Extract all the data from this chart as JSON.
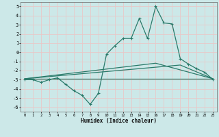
{
  "xlabel": "Humidex (Indice chaleur)",
  "bg_color": "#cce8e8",
  "plot_bg_color": "#cce8e8",
  "grid_color": "#e8c8c8",
  "line_color": "#2a7a6a",
  "xlim": [
    -0.5,
    23.5
  ],
  "ylim": [
    -6.5,
    5.5
  ],
  "xticks": [
    0,
    1,
    2,
    3,
    4,
    5,
    6,
    7,
    8,
    9,
    10,
    11,
    12,
    13,
    14,
    15,
    16,
    17,
    18,
    19,
    20,
    21,
    22,
    23
  ],
  "yticks": [
    -6,
    -5,
    -4,
    -3,
    -2,
    -1,
    0,
    1,
    2,
    3,
    4,
    5
  ],
  "line1_x": [
    0,
    1,
    2,
    3,
    4,
    5,
    6,
    7,
    8,
    9,
    10,
    11,
    12,
    13,
    14,
    15,
    16,
    17,
    18,
    19,
    20,
    21,
    22,
    23
  ],
  "line1_y": [
    -3.0,
    -3.0,
    -3.3,
    -3.0,
    -2.8,
    -3.5,
    -4.2,
    -4.7,
    -5.7,
    -4.5,
    -0.2,
    0.7,
    1.5,
    1.5,
    3.7,
    1.5,
    5.0,
    3.2,
    3.1,
    -0.7,
    -1.3,
    -1.8,
    -2.2,
    -3.0
  ],
  "line2_x": [
    0,
    1,
    2,
    3,
    4,
    5,
    6,
    7,
    8,
    9,
    10,
    11,
    12,
    13,
    14,
    15,
    16,
    17,
    18,
    19,
    20,
    21,
    22,
    23
  ],
  "line2_y": [
    -2.9,
    -2.9,
    -2.9,
    -2.9,
    -2.9,
    -2.9,
    -2.9,
    -2.9,
    -2.9,
    -2.9,
    -2.9,
    -2.9,
    -2.9,
    -2.9,
    -2.9,
    -2.9,
    -2.9,
    -2.9,
    -2.9,
    -2.9,
    -2.9,
    -2.9,
    -2.9,
    -2.9
  ],
  "line3_x": [
    0,
    23
  ],
  "line3_y": [
    -2.9,
    -2.9
  ],
  "line4_x": [
    0,
    16,
    23
  ],
  "line4_y": [
    -2.9,
    -1.2,
    -2.9
  ],
  "line5_x": [
    0,
    19,
    23
  ],
  "line5_y": [
    -2.9,
    -1.4,
    -2.9
  ]
}
